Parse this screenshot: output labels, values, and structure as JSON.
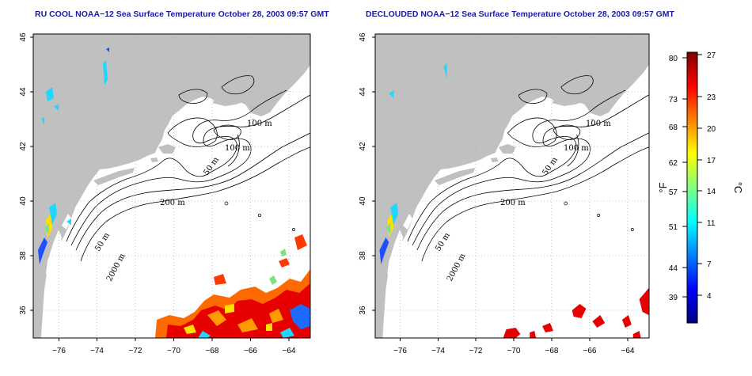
{
  "panels": [
    {
      "title": "RU COOL NOAA−12 Sea Surface Temperature October 28, 2003 09:57 GMT",
      "contour_labels": [
        "100 m",
        "100 m",
        "50 m",
        "200 m",
        "50 m",
        "2000 m"
      ]
    },
    {
      "title": "DECLOUDED NOAA−12 Sea Surface Temperature October 28, 2003 09:57 GMT",
      "contour_labels": [
        "100 m",
        "100 m",
        "50 m",
        "200 m",
        "50 m",
        "2000 m"
      ]
    }
  ],
  "axes": {
    "lon_ticks": [
      "−76",
      "−74",
      "−72",
      "−70",
      "−68",
      "−66",
      "−64"
    ],
    "lat_ticks": [
      "46",
      "44",
      "42",
      "40",
      "38",
      "36"
    ],
    "lon_range": [
      -77.2,
      -63.0
    ],
    "lat_range": [
      35.0,
      46.0
    ]
  },
  "colorbar": {
    "fahrenheit_label": "°F",
    "celsius_label": "°C",
    "fahrenheit_ticks": [
      "80",
      "73",
      "68",
      "62",
      "57",
      "51",
      "44",
      "39"
    ],
    "celsius_ticks": [
      "27",
      "23",
      "20",
      "17",
      "14",
      "11",
      "7",
      "4"
    ],
    "range_celsius": [
      1,
      27
    ],
    "colors": [
      "#00007f",
      "#0000ff",
      "#0080ff",
      "#00ffff",
      "#80ff80",
      "#ffff00",
      "#ff8000",
      "#ff0000",
      "#7f0000"
    ]
  },
  "colors": {
    "land": "#c0c0c0",
    "ocean": "#ffffff",
    "title": "#1a1aa8",
    "contour": "#000000"
  }
}
